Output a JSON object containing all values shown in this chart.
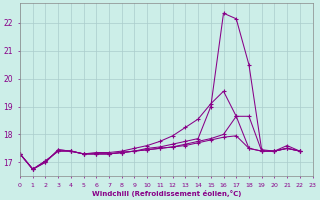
{
  "background_color": "#cceee8",
  "grid_color": "#aacccc",
  "line_color": "#880088",
  "marker": "+",
  "xlabel": "Windchill (Refroidissement éolien,°C)",
  "xlim": [
    0,
    23
  ],
  "ylim": [
    16.5,
    22.7
  ],
  "yticks": [
    17,
    18,
    19,
    20,
    21,
    22
  ],
  "xticks": [
    0,
    1,
    2,
    3,
    4,
    5,
    6,
    7,
    8,
    9,
    10,
    11,
    12,
    13,
    14,
    15,
    16,
    17,
    18,
    19,
    20,
    21,
    22,
    23
  ],
  "series": [
    {
      "x": [
        0,
        1,
        2,
        3,
        4,
        5,
        6,
        7,
        8,
        9,
        10,
        11,
        12,
        13,
        14,
        15,
        16,
        17,
        18,
        19,
        20,
        21,
        22
      ],
      "y": [
        17.3,
        16.75,
        17.0,
        17.45,
        17.4,
        17.3,
        17.3,
        17.3,
        17.35,
        17.4,
        17.5,
        17.55,
        17.65,
        17.75,
        17.85,
        19.0,
        22.35,
        22.15,
        20.5,
        17.45,
        17.4,
        17.6,
        17.4
      ]
    },
    {
      "x": [
        0,
        1,
        2,
        3,
        4,
        5,
        6,
        7,
        8,
        9,
        10,
        11,
        12,
        13,
        14,
        15,
        16,
        17,
        18,
        19,
        20,
        21,
        22
      ],
      "y": [
        17.3,
        16.75,
        17.0,
        17.45,
        17.4,
        17.3,
        17.35,
        17.35,
        17.4,
        17.5,
        17.6,
        17.75,
        17.95,
        18.25,
        18.55,
        19.1,
        19.55,
        18.65,
        17.5,
        17.4,
        17.4,
        17.5,
        17.4
      ]
    },
    {
      "x": [
        0,
        1,
        2,
        3,
        4,
        5,
        6,
        7,
        8,
        9,
        10,
        11,
        12,
        13,
        14,
        15,
        16,
        17,
        18,
        19,
        20,
        21,
        22
      ],
      "y": [
        17.3,
        16.75,
        17.05,
        17.4,
        17.4,
        17.3,
        17.3,
        17.3,
        17.35,
        17.4,
        17.45,
        17.5,
        17.55,
        17.65,
        17.75,
        17.85,
        18.0,
        18.65,
        18.65,
        17.4,
        17.4,
        17.5,
        17.4
      ]
    },
    {
      "x": [
        0,
        1,
        2,
        3,
        4,
        5,
        6,
        7,
        8,
        9,
        10,
        11,
        12,
        13,
        14,
        15,
        16,
        17,
        18,
        19,
        20,
        21,
        22
      ],
      "y": [
        17.3,
        16.75,
        17.05,
        17.4,
        17.4,
        17.3,
        17.3,
        17.3,
        17.35,
        17.4,
        17.45,
        17.5,
        17.55,
        17.6,
        17.7,
        17.8,
        17.9,
        17.95,
        17.5,
        17.4,
        17.4,
        17.5,
        17.4
      ]
    }
  ]
}
